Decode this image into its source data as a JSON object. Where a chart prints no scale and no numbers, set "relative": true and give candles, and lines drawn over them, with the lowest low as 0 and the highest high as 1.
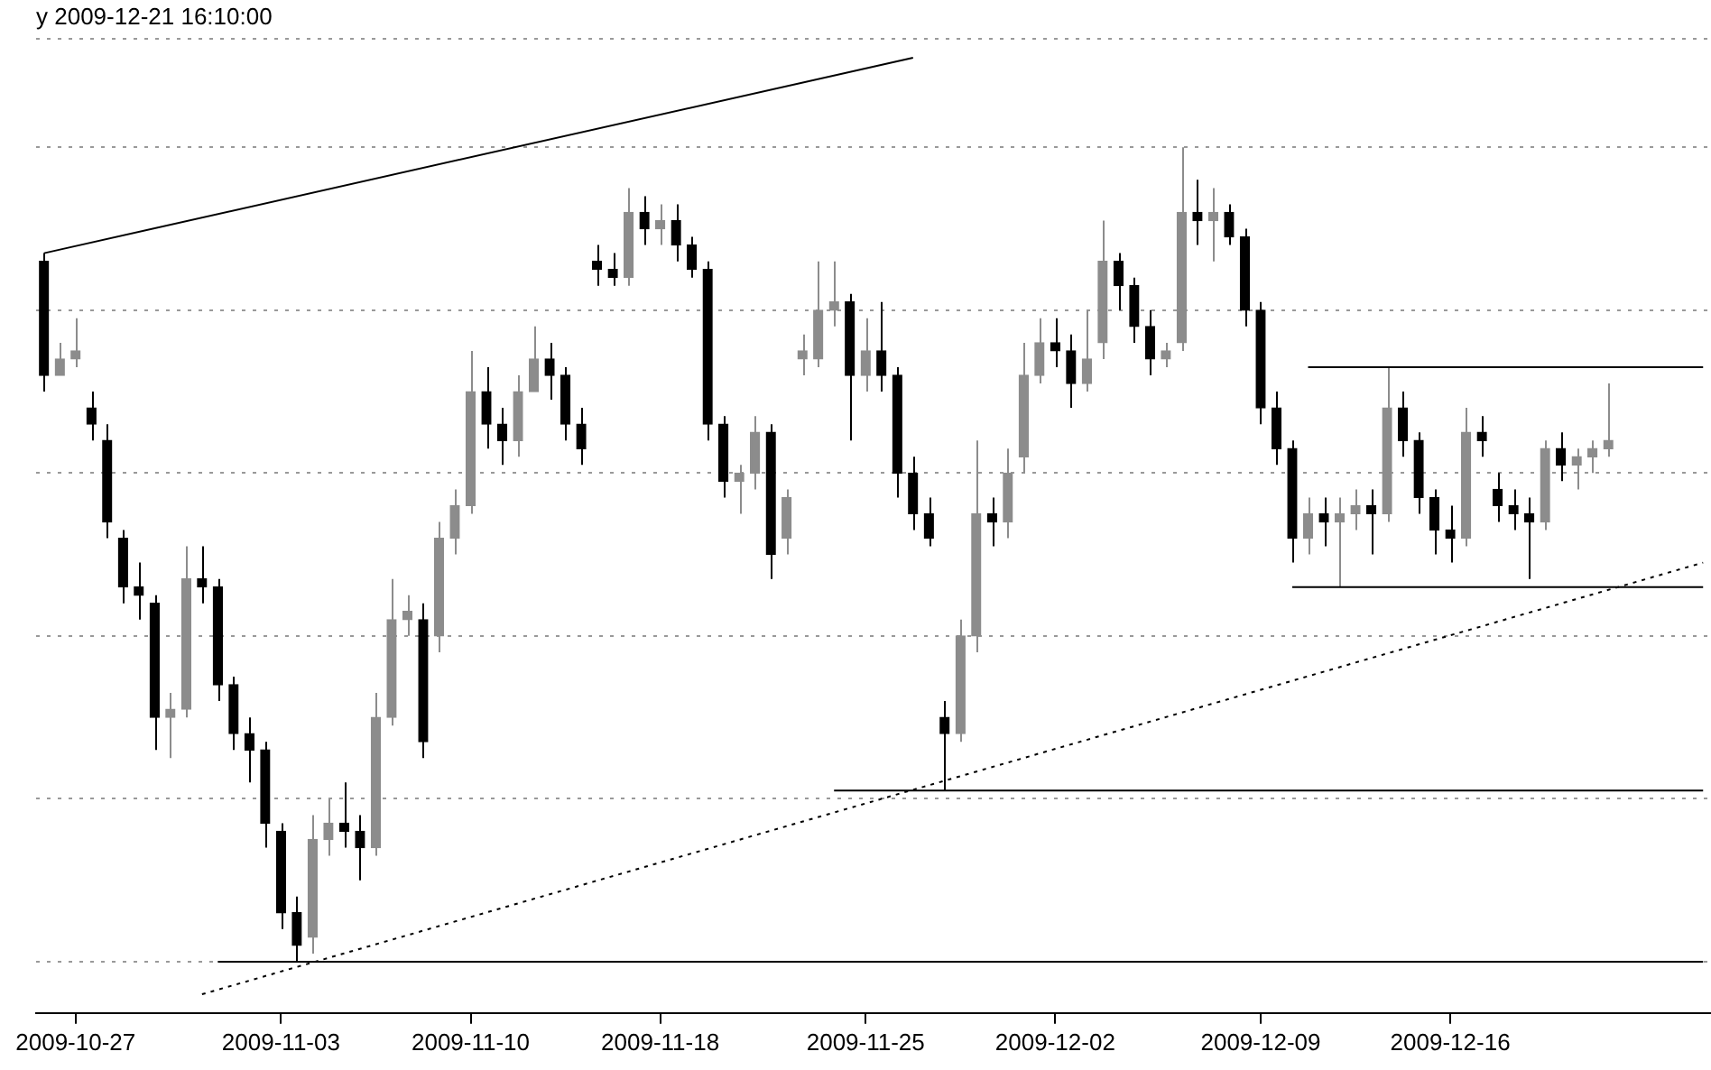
{
  "chart_data": {
    "type": "candlestick",
    "title": "y 2009-12-21 16:10:00",
    "relative": true,
    "grid": "y",
    "legend": false,
    "tick_labels": "x",
    "categories": [
      null,
      null,
      "2009-10-27",
      null,
      null,
      null,
      null,
      null,
      null,
      null,
      null,
      null,
      null,
      null,
      null,
      "2009-11-03",
      null,
      null,
      null,
      null,
      null,
      null,
      null,
      null,
      null,
      null,
      null,
      "2009-11-10",
      null,
      null,
      null,
      null,
      null,
      null,
      null,
      null,
      null,
      null,
      null,
      "2009-11-18",
      null,
      null,
      null,
      null,
      null,
      null,
      null,
      null,
      null,
      null,
      null,
      null,
      "2009-11-25",
      null,
      null,
      null,
      null,
      null,
      null,
      null,
      null,
      null,
      null,
      null,
      "2009-12-02",
      null,
      null,
      null,
      null,
      null,
      null,
      null,
      null,
      null,
      null,
      null,
      null,
      "2009-12-09",
      null,
      null,
      null,
      null,
      null,
      null,
      null,
      null,
      null,
      null,
      null,
      "2009-12-16",
      null,
      null,
      null,
      null,
      null,
      null,
      null,
      null,
      null,
      null,
      null,
      null,
      null,
      null,
      null,
      null
    ],
    "ohlc": [
      [
        0.86,
        0.87,
        0.7,
        0.72
      ],
      [
        0.72,
        0.76,
        0.72,
        0.74
      ],
      [
        0.74,
        0.79,
        0.73,
        0.75
      ],
      [
        0.68,
        0.7,
        0.64,
        0.66
      ],
      [
        0.64,
        0.66,
        0.52,
        0.54
      ],
      [
        0.52,
        0.53,
        0.44,
        0.46
      ],
      [
        0.46,
        0.49,
        0.42,
        0.45
      ],
      [
        0.44,
        0.45,
        0.26,
        0.3
      ],
      [
        0.3,
        0.33,
        0.25,
        0.31
      ],
      [
        0.31,
        0.51,
        0.3,
        0.47
      ],
      [
        0.47,
        0.51,
        0.44,
        0.46
      ],
      [
        0.46,
        0.47,
        0.32,
        0.34
      ],
      [
        0.34,
        0.35,
        0.26,
        0.28
      ],
      [
        0.28,
        0.3,
        0.22,
        0.26
      ],
      [
        0.26,
        0.27,
        0.14,
        0.17
      ],
      [
        0.16,
        0.17,
        0.04,
        0.06
      ],
      [
        0.06,
        0.08,
        0,
        0.02
      ],
      [
        0.03,
        0.18,
        0.01,
        0.15
      ],
      [
        0.15,
        0.2,
        0.13,
        0.17
      ],
      [
        0.17,
        0.22,
        0.14,
        0.16
      ],
      [
        0.16,
        0.18,
        0.1,
        0.14
      ],
      [
        0.14,
        0.33,
        0.13,
        0.3
      ],
      [
        0.3,
        0.47,
        0.29,
        0.42
      ],
      [
        0.42,
        0.45,
        0.4,
        0.43
      ],
      [
        0.42,
        0.44,
        0.25,
        0.27
      ],
      [
        0.4,
        0.54,
        0.38,
        0.52
      ],
      [
        0.52,
        0.58,
        0.5,
        0.56
      ],
      [
        0.56,
        0.75,
        0.55,
        0.7
      ],
      [
        0.7,
        0.73,
        0.63,
        0.66
      ],
      [
        0.66,
        0.68,
        0.61,
        0.64
      ],
      [
        0.64,
        0.72,
        0.62,
        0.7
      ],
      [
        0.7,
        0.78,
        0.7,
        0.74
      ],
      [
        0.74,
        0.76,
        0.69,
        0.72
      ],
      [
        0.72,
        0.73,
        0.64,
        0.66
      ],
      [
        0.66,
        0.68,
        0.61,
        0.63
      ],
      [
        0.86,
        0.88,
        0.83,
        0.85
      ],
      [
        0.85,
        0.87,
        0.83,
        0.84
      ],
      [
        0.84,
        0.95,
        0.83,
        0.92
      ],
      [
        0.92,
        0.94,
        0.88,
        0.9
      ],
      [
        0.9,
        0.93,
        0.88,
        0.91
      ],
      [
        0.91,
        0.93,
        0.86,
        0.88
      ],
      [
        0.88,
        0.89,
        0.84,
        0.85
      ],
      [
        0.85,
        0.86,
        0.64,
        0.66
      ],
      [
        0.66,
        0.67,
        0.57,
        0.59
      ],
      [
        0.59,
        0.61,
        0.55,
        0.6
      ],
      [
        0.6,
        0.67,
        0.58,
        0.65
      ],
      [
        0.65,
        0.66,
        0.47,
        0.5
      ],
      [
        0.52,
        0.58,
        0.5,
        0.57
      ],
      [
        0.74,
        0.77,
        0.72,
        0.75
      ],
      [
        0.74,
        0.86,
        0.73,
        0.8
      ],
      [
        0.8,
        0.86,
        0.78,
        0.81
      ],
      [
        0.81,
        0.82,
        0.64,
        0.72
      ],
      [
        0.72,
        0.79,
        0.7,
        0.75
      ],
      [
        0.75,
        0.81,
        0.7,
        0.72
      ],
      [
        0.72,
        0.73,
        0.57,
        0.6
      ],
      [
        0.6,
        0.62,
        0.53,
        0.55
      ],
      [
        0.55,
        0.57,
        0.51,
        0.52
      ],
      [
        0.3,
        0.32,
        0.21,
        0.28
      ],
      [
        0.28,
        0.42,
        0.27,
        0.4
      ],
      [
        0.4,
        0.64,
        0.38,
        0.55
      ],
      [
        0.55,
        0.57,
        0.51,
        0.54
      ],
      [
        0.54,
        0.63,
        0.52,
        0.6
      ],
      [
        0.62,
        0.76,
        0.6,
        0.72
      ],
      [
        0.72,
        0.79,
        0.71,
        0.76
      ],
      [
        0.76,
        0.79,
        0.73,
        0.75
      ],
      [
        0.75,
        0.77,
        0.68,
        0.71
      ],
      [
        0.71,
        0.8,
        0.7,
        0.74
      ],
      [
        0.76,
        0.91,
        0.74,
        0.86
      ],
      [
        0.86,
        0.87,
        0.8,
        0.83
      ],
      [
        0.83,
        0.84,
        0.76,
        0.78
      ],
      [
        0.78,
        0.8,
        0.72,
        0.74
      ],
      [
        0.74,
        0.76,
        0.73,
        0.75
      ],
      [
        0.76,
        1.0,
        0.75,
        0.92
      ],
      [
        0.92,
        0.96,
        0.88,
        0.91
      ],
      [
        0.91,
        0.95,
        0.86,
        0.92
      ],
      [
        0.92,
        0.93,
        0.88,
        0.89
      ],
      [
        0.89,
        0.9,
        0.78,
        0.8
      ],
      [
        0.8,
        0.81,
        0.66,
        0.68
      ],
      [
        0.68,
        0.7,
        0.61,
        0.63
      ],
      [
        0.63,
        0.64,
        0.49,
        0.52
      ],
      [
        0.52,
        0.57,
        0.5,
        0.55
      ],
      [
        0.55,
        0.57,
        0.51,
        0.54
      ],
      [
        0.54,
        0.57,
        0.46,
        0.55
      ],
      [
        0.55,
        0.58,
        0.53,
        0.56
      ],
      [
        0.56,
        0.58,
        0.5,
        0.55
      ],
      [
        0.55,
        0.73,
        0.54,
        0.68
      ],
      [
        0.68,
        0.7,
        0.62,
        0.64
      ],
      [
        0.64,
        0.65,
        0.55,
        0.57
      ],
      [
        0.57,
        0.58,
        0.5,
        0.53
      ],
      [
        0.53,
        0.56,
        0.49,
        0.52
      ],
      [
        0.52,
        0.68,
        0.51,
        0.65
      ],
      [
        0.65,
        0.67,
        0.62,
        0.64
      ],
      [
        0.58,
        0.6,
        0.54,
        0.56
      ],
      [
        0.56,
        0.58,
        0.53,
        0.55
      ],
      [
        0.55,
        0.57,
        0.47,
        0.54
      ],
      [
        0.54,
        0.64,
        0.53,
        0.63
      ],
      [
        0.63,
        0.65,
        0.59,
        0.61
      ],
      [
        0.61,
        0.63,
        0.58,
        0.62
      ],
      [
        0.62,
        0.64,
        0.6,
        0.63
      ],
      [
        0.63,
        0.71,
        0.62,
        0.64
      ],
      null,
      null,
      null,
      null,
      null,
      null
    ],
    "colors": [
      "#000000",
      "#8c8c8c",
      "#8c8c8c",
      "#000000",
      "#000000",
      "#000000",
      "#000000",
      "#000000",
      "#8c8c8c",
      "#8c8c8c",
      "#000000",
      "#000000",
      "#000000",
      "#000000",
      "#000000",
      "#000000",
      "#000000",
      "#8c8c8c",
      "#8c8c8c",
      "#000000",
      "#000000",
      "#8c8c8c",
      "#8c8c8c",
      "#8c8c8c",
      "#000000",
      "#8c8c8c",
      "#8c8c8c",
      "#8c8c8c",
      "#000000",
      "#000000",
      "#8c8c8c",
      "#8c8c8c",
      "#000000",
      "#000000",
      "#000000",
      "#000000",
      "#000000",
      "#8c8c8c",
      "#000000",
      "#8c8c8c",
      "#000000",
      "#000000",
      "#000000",
      "#000000",
      "#8c8c8c",
      "#8c8c8c",
      "#000000",
      "#8c8c8c",
      "#8c8c8c",
      "#8c8c8c",
      "#8c8c8c",
      "#000000",
      "#8c8c8c",
      "#000000",
      "#000000",
      "#000000",
      "#000000",
      "#000000",
      "#8c8c8c",
      "#8c8c8c",
      "#000000",
      "#8c8c8c",
      "#8c8c8c",
      "#8c8c8c",
      "#000000",
      "#000000",
      "#8c8c8c",
      "#8c8c8c",
      "#000000",
      "#000000",
      "#000000",
      "#8c8c8c",
      "#8c8c8c",
      "#000000",
      "#8c8c8c",
      "#000000",
      "#000000",
      "#000000",
      "#000000",
      "#000000",
      "#8c8c8c",
      "#000000",
      "#8c8c8c",
      "#8c8c8c",
      "#000000",
      "#8c8c8c",
      "#000000",
      "#000000",
      "#000000",
      "#000000",
      "#8c8c8c",
      "#000000",
      "#000000",
      "#000000",
      "#000000",
      "#8c8c8c",
      "#000000",
      "#8c8c8c",
      "#8c8c8c",
      "#8c8c8c",
      null,
      null,
      null,
      null,
      null,
      null
    ],
    "series": [
      {
        "type": "line",
        "color": "#000000",
        "values": [
          0.87,
          null,
          null,
          null,
          null,
          null,
          null,
          null,
          null,
          null,
          null,
          null,
          null,
          null,
          null,
          null,
          null,
          null,
          null,
          null,
          null,
          null,
          null,
          null,
          null,
          null,
          null,
          null,
          null,
          null,
          null,
          null,
          null,
          null,
          null,
          null,
          null,
          null,
          null,
          null,
          null,
          null,
          null,
          null,
          null,
          null,
          null,
          null,
          null,
          null,
          null,
          null,
          null,
          null,
          null,
          1.11,
          null,
          null,
          null,
          null,
          null,
          null,
          null,
          null,
          null,
          null,
          null,
          null,
          null,
          null,
          null,
          null,
          null,
          null,
          null,
          null,
          null,
          null,
          null,
          null,
          null,
          null,
          null,
          null,
          null,
          null,
          null,
          null,
          null,
          null,
          null,
          null,
          null,
          null,
          null,
          null,
          null,
          null,
          null,
          null,
          null,
          null,
          null,
          null,
          null,
          null
        ]
      },
      {
        "type": "line",
        "color": "#000000",
        "line_style": "dotted",
        "values": [
          null,
          null,
          null,
          null,
          null,
          null,
          null,
          null,
          null,
          null,
          -0.04,
          null,
          null,
          null,
          null,
          null,
          null,
          null,
          null,
          null,
          null,
          null,
          null,
          null,
          null,
          null,
          null,
          null,
          null,
          null,
          null,
          null,
          null,
          null,
          null,
          null,
          null,
          null,
          null,
          null,
          null,
          null,
          null,
          null,
          null,
          null,
          null,
          null,
          null,
          null,
          null,
          null,
          null,
          null,
          null,
          null,
          null,
          null,
          null,
          null,
          null,
          null,
          null,
          null,
          null,
          null,
          null,
          null,
          null,
          null,
          null,
          null,
          null,
          null,
          null,
          null,
          null,
          null,
          null,
          null,
          null,
          null,
          null,
          null,
          null,
          null,
          null,
          null,
          null,
          null,
          null,
          null,
          null,
          null,
          null,
          null,
          null,
          null,
          null,
          null,
          null,
          null,
          null,
          null,
          null,
          0.49
        ]
      },
      {
        "type": "line",
        "color": "#000000",
        "values": [
          null,
          null,
          null,
          null,
          null,
          null,
          null,
          null,
          null,
          null,
          null,
          0,
          null,
          null,
          null,
          null,
          null,
          null,
          null,
          null,
          null,
          null,
          null,
          null,
          null,
          null,
          null,
          null,
          null,
          null,
          null,
          null,
          null,
          null,
          null,
          null,
          null,
          null,
          null,
          null,
          null,
          null,
          null,
          null,
          null,
          null,
          null,
          null,
          null,
          null,
          null,
          null,
          null,
          null,
          null,
          null,
          null,
          null,
          null,
          null,
          null,
          null,
          null,
          null,
          null,
          null,
          null,
          null,
          null,
          null,
          null,
          null,
          null,
          null,
          null,
          null,
          null,
          null,
          null,
          null,
          null,
          null,
          null,
          null,
          null,
          null,
          null,
          null,
          null,
          null,
          null,
          null,
          null,
          null,
          null,
          null,
          null,
          null,
          null,
          null,
          null,
          null,
          null,
          null,
          null,
          0
        ]
      },
      {
        "type": "line",
        "color": "#000000",
        "values": [
          null,
          null,
          null,
          null,
          null,
          null,
          null,
          null,
          null,
          null,
          null,
          null,
          null,
          null,
          null,
          null,
          null,
          null,
          null,
          null,
          null,
          null,
          null,
          null,
          null,
          null,
          null,
          null,
          null,
          null,
          null,
          null,
          null,
          null,
          null,
          null,
          null,
          null,
          null,
          null,
          null,
          null,
          null,
          null,
          null,
          null,
          null,
          null,
          null,
          null,
          0.21,
          null,
          null,
          null,
          null,
          null,
          null,
          null,
          null,
          null,
          null,
          null,
          null,
          null,
          null,
          null,
          null,
          null,
          null,
          null,
          null,
          null,
          null,
          null,
          null,
          null,
          null,
          null,
          null,
          null,
          null,
          null,
          null,
          null,
          null,
          null,
          null,
          null,
          null,
          null,
          null,
          null,
          null,
          null,
          null,
          null,
          null,
          null,
          null,
          null,
          null,
          null,
          null,
          null,
          null,
          0.21
        ]
      },
      {
        "type": "line",
        "color": "#000000",
        "values": [
          null,
          null,
          null,
          null,
          null,
          null,
          null,
          null,
          null,
          null,
          null,
          null,
          null,
          null,
          null,
          null,
          null,
          null,
          null,
          null,
          null,
          null,
          null,
          null,
          null,
          null,
          null,
          null,
          null,
          null,
          null,
          null,
          null,
          null,
          null,
          null,
          null,
          null,
          null,
          null,
          null,
          null,
          null,
          null,
          null,
          null,
          null,
          null,
          null,
          null,
          null,
          null,
          null,
          null,
          null,
          null,
          null,
          null,
          null,
          null,
          null,
          null,
          null,
          null,
          null,
          null,
          null,
          null,
          null,
          null,
          null,
          null,
          null,
          null,
          null,
          null,
          null,
          null,
          null,
          0.46,
          null,
          null,
          null,
          null,
          null,
          null,
          null,
          null,
          null,
          null,
          null,
          null,
          null,
          null,
          null,
          null,
          null,
          null,
          null,
          null,
          null,
          null,
          null,
          null,
          null,
          0.46
        ]
      },
      {
        "type": "line",
        "color": "#000000",
        "values": [
          null,
          null,
          null,
          null,
          null,
          null,
          null,
          null,
          null,
          null,
          null,
          null,
          null,
          null,
          null,
          null,
          null,
          null,
          null,
          null,
          null,
          null,
          null,
          null,
          null,
          null,
          null,
          null,
          null,
          null,
          null,
          null,
          null,
          null,
          null,
          null,
          null,
          null,
          null,
          null,
          null,
          null,
          null,
          null,
          null,
          null,
          null,
          null,
          null,
          null,
          null,
          null,
          null,
          null,
          null,
          null,
          null,
          null,
          null,
          null,
          null,
          null,
          null,
          null,
          null,
          null,
          null,
          null,
          null,
          null,
          null,
          null,
          null,
          null,
          null,
          null,
          null,
          null,
          null,
          null,
          0.73,
          null,
          null,
          null,
          null,
          null,
          null,
          null,
          null,
          null,
          null,
          null,
          null,
          null,
          null,
          null,
          null,
          null,
          null,
          null,
          null,
          null,
          null,
          null,
          null,
          0.73
        ]
      }
    ]
  }
}
